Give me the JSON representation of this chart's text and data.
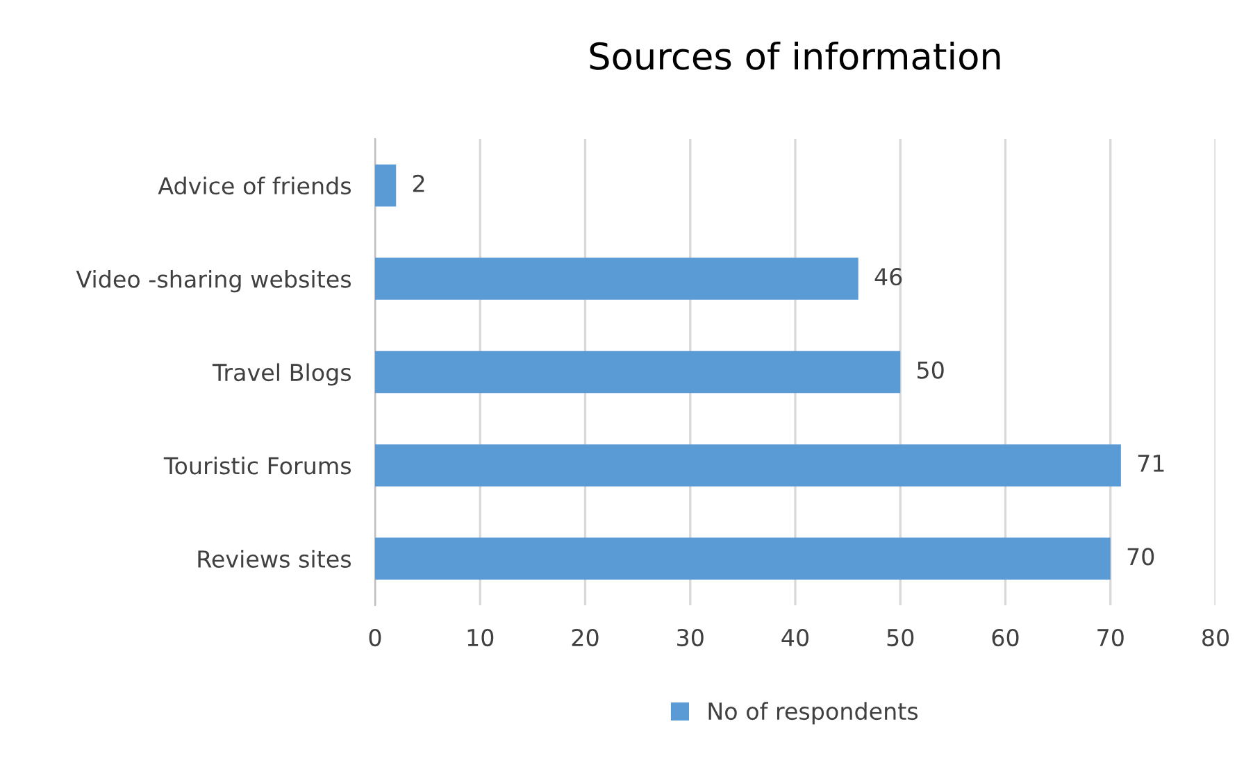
{
  "chart_data": {
    "type": "bar",
    "orientation": "horizontal",
    "title": "Sources of information",
    "categories": [
      "Advice of friends",
      "Video -sharing websites",
      "Travel Blogs",
      "Touristic Forums",
      "Reviews sites"
    ],
    "series": [
      {
        "name": "No of respondents",
        "color": "#5b9bd5",
        "values": [
          2,
          46,
          50,
          71,
          70
        ]
      }
    ],
    "xlim": [
      0,
      80
    ],
    "xticks": [
      0,
      10,
      20,
      30,
      40,
      50,
      60,
      70,
      80
    ],
    "grid": "x",
    "legend": "bottom",
    "data_labels": true
  }
}
